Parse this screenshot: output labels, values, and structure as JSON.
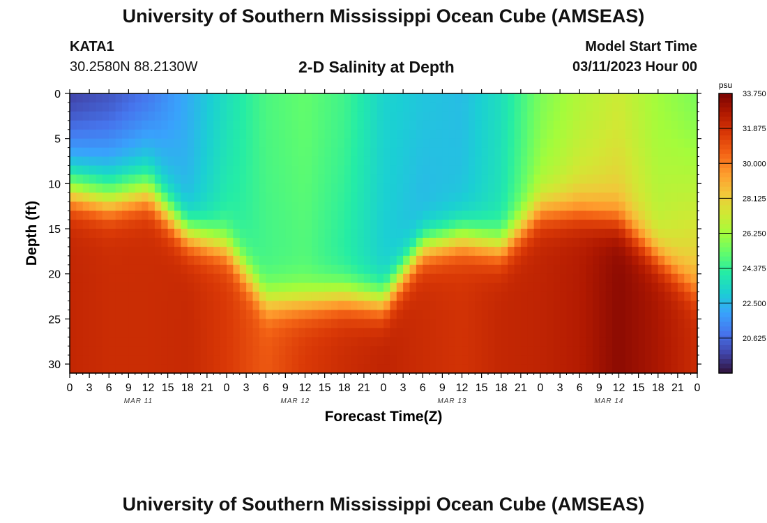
{
  "header": {
    "title": "University of Southern Mississippi Ocean Cube (AMSEAS)",
    "station": "KATA1",
    "coordinates": "30.2580N  88.2130W",
    "plot_title": "2-D Salinity at Depth",
    "model_label": "Model Start Time",
    "model_start": "03/11/2023 Hour 00"
  },
  "footer": {
    "title": "University of Southern Mississippi Ocean Cube (AMSEAS)"
  },
  "chart_data": {
    "type": "heatmap",
    "title": "2-D Salinity at Depth",
    "xlabel": "Forecast Time(Z)",
    "ylabel": "Depth (ft)",
    "x_range_hours": [
      0,
      96
    ],
    "y_range_ft": [
      0,
      31
    ],
    "y_inverted": true,
    "x_tick_labels": [
      "0",
      "3",
      "6",
      "9",
      "12",
      "15",
      "18",
      "21",
      "0",
      "3",
      "6",
      "9",
      "12",
      "15",
      "18",
      "21",
      "0",
      "3",
      "6",
      "9",
      "12",
      "15",
      "18",
      "21",
      "0",
      "3",
      "6",
      "9",
      "12",
      "15",
      "18",
      "21",
      "0"
    ],
    "y_tick_labels": [
      "0",
      "5",
      "10",
      "15",
      "20",
      "25",
      "30"
    ],
    "day_labels": [
      "MAR 11",
      "MAR 12",
      "MAR 13",
      "MAR 14"
    ],
    "colorbar": {
      "unit": "psu",
      "min": 18.75,
      "max": 33.75,
      "tick_labels": [
        "33.750",
        "31.875",
        "30.000",
        "28.125",
        "26.250",
        "24.375",
        "22.500",
        "20.625"
      ],
      "colors": [
        "#30123b",
        "#4145ab",
        "#4675ed",
        "#39a2fc",
        "#1bcfd4",
        "#24eca6",
        "#61fc6c",
        "#a4fc3b",
        "#d1e834",
        "#f3c63a",
        "#fe9b2d",
        "#f36315",
        "#d93806",
        "#b11901",
        "#7a0403"
      ]
    },
    "hours": [
      0,
      6,
      12,
      18,
      24,
      30,
      36,
      42,
      48,
      54,
      60,
      66,
      72,
      78,
      84,
      90,
      96
    ],
    "thermocline_depth_ft": [
      11,
      12,
      11,
      15.5,
      17,
      23,
      23,
      22.5,
      23,
      17,
      16,
      17,
      13,
      13,
      14,
      18,
      22
    ],
    "surface_salinity_psu": [
      19.8,
      20.2,
      21.0,
      22.2,
      23.6,
      24.8,
      25.2,
      24.6,
      23.2,
      22.8,
      22.6,
      23.6,
      25.6,
      26.6,
      27.2,
      26.2,
      25.6
    ],
    "upper_salinity_psu": [
      23.0,
      23.2,
      23.4,
      22.6,
      24.2,
      24.6,
      24.8,
      24.0,
      23.0,
      22.4,
      22.8,
      23.8,
      26.4,
      27.6,
      28.2,
      27.0,
      28.4
    ],
    "bottom_salinity_psu": [
      32.2,
      32.0,
      32.0,
      32.1,
      31.6,
      30.8,
      31.6,
      32.0,
      32.3,
      32.0,
      31.8,
      32.2,
      32.3,
      32.6,
      33.4,
      32.8,
      32.0
    ]
  }
}
